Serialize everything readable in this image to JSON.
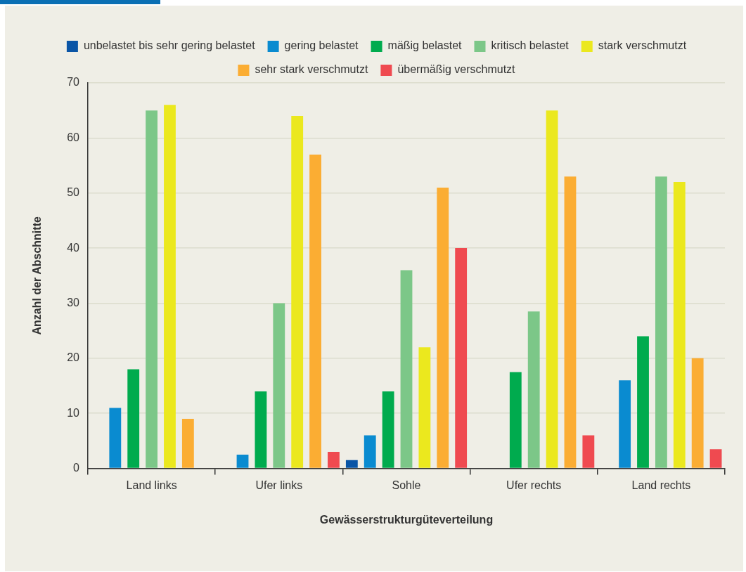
{
  "chart_data": {
    "type": "bar",
    "xlabel": "Gewässerstrukturgüteverteilung",
    "ylabel": "Anzahl der Abschnitte",
    "categories": [
      "Land links",
      "Ufer links",
      "Sohle",
      "Ufer rechts",
      "Land rechts"
    ],
    "series": [
      {
        "name": "unbelastet bis sehr gering belastet",
        "color": "#0a55a6",
        "values": [
          0,
          0,
          1.5,
          0,
          0
        ]
      },
      {
        "name": "gering belastet",
        "color": "#0a8bd0",
        "values": [
          11,
          2.5,
          6,
          0,
          16
        ]
      },
      {
        "name": "mäßig belastet",
        "color": "#00ab4e",
        "values": [
          18,
          14,
          14,
          17.5,
          24
        ]
      },
      {
        "name": "kritisch belastet",
        "color": "#7cc788",
        "values": [
          65,
          30,
          36,
          28.5,
          53
        ]
      },
      {
        "name": "stark verschmutzt",
        "color": "#ebe81e",
        "values": [
          66,
          64,
          22,
          65,
          52
        ]
      },
      {
        "name": "sehr stark verschmutzt",
        "color": "#fbad33",
        "values": [
          9,
          57,
          51,
          53,
          20
        ]
      },
      {
        "name": "übermäßig verschmutzt",
        "color": "#ef4a50",
        "values": [
          0,
          3,
          40,
          6,
          3.5
        ]
      }
    ],
    "ylim": [
      0,
      70
    ],
    "yticks": [
      0,
      10,
      20,
      30,
      40,
      50,
      60,
      70
    ],
    "grid": "y",
    "legend": "top"
  }
}
